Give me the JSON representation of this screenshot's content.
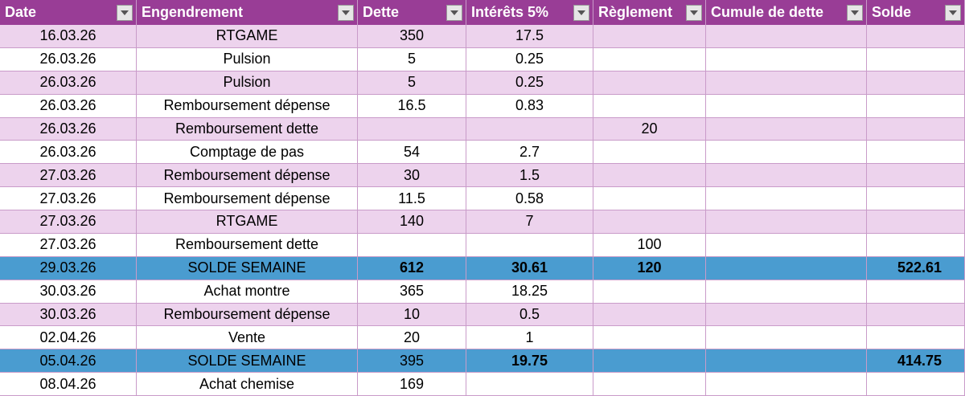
{
  "table": {
    "header": [
      "Date",
      "Engendrement",
      "Dette",
      "Intérêts 5%",
      "Règlement",
      "Cumule de dette",
      "Solde"
    ],
    "rows": [
      [
        "16.03.26",
        "RTGAME",
        350,
        17.5,
        null,
        null,
        null
      ],
      [
        "26.03.26",
        "Pulsion",
        5,
        0.25,
        null,
        null,
        null
      ],
      [
        "26.03.26",
        "Pulsion",
        5,
        0.25,
        null,
        null,
        null
      ],
      [
        "26.03.26",
        "Remboursement dépense",
        16.5,
        0.83,
        null,
        null,
        null
      ],
      [
        "26.03.26",
        "Remboursement dette",
        null,
        null,
        20,
        null,
        null
      ],
      [
        "26.03.26",
        "Comptage de pas",
        54,
        2.7,
        null,
        null,
        null
      ],
      [
        "27.03.26",
        "Remboursement dépense",
        30,
        1.5,
        null,
        null,
        null
      ],
      [
        "27.03.26",
        "Remboursement dépense",
        11.5,
        0.58,
        null,
        null,
        null
      ],
      [
        "27.03.26",
        "RTGAME",
        140,
        7,
        null,
        null,
        null
      ],
      [
        "27.03.26",
        "Remboursement dette",
        null,
        null,
        100,
        null,
        null
      ],
      [
        "29.03.26",
        "SOLDE SEMAINE",
        612,
        30.61,
        120,
        null,
        522.61
      ],
      [
        "30.03.26",
        "Achat montre",
        365,
        18.25,
        null,
        null,
        null
      ],
      [
        "30.03.26",
        "Remboursement dépense",
        10,
        0.5,
        null,
        null,
        null
      ],
      [
        "02.04.26",
        "Vente",
        20,
        1,
        null,
        null,
        null
      ],
      [
        "05.04.26",
        "SOLDE SEMAINE",
        395,
        19.75,
        null,
        null,
        414.75
      ],
      [
        "08.04.26",
        "Achat chemise",
        169,
        null,
        null,
        null,
        null
      ]
    ]
  }
}
